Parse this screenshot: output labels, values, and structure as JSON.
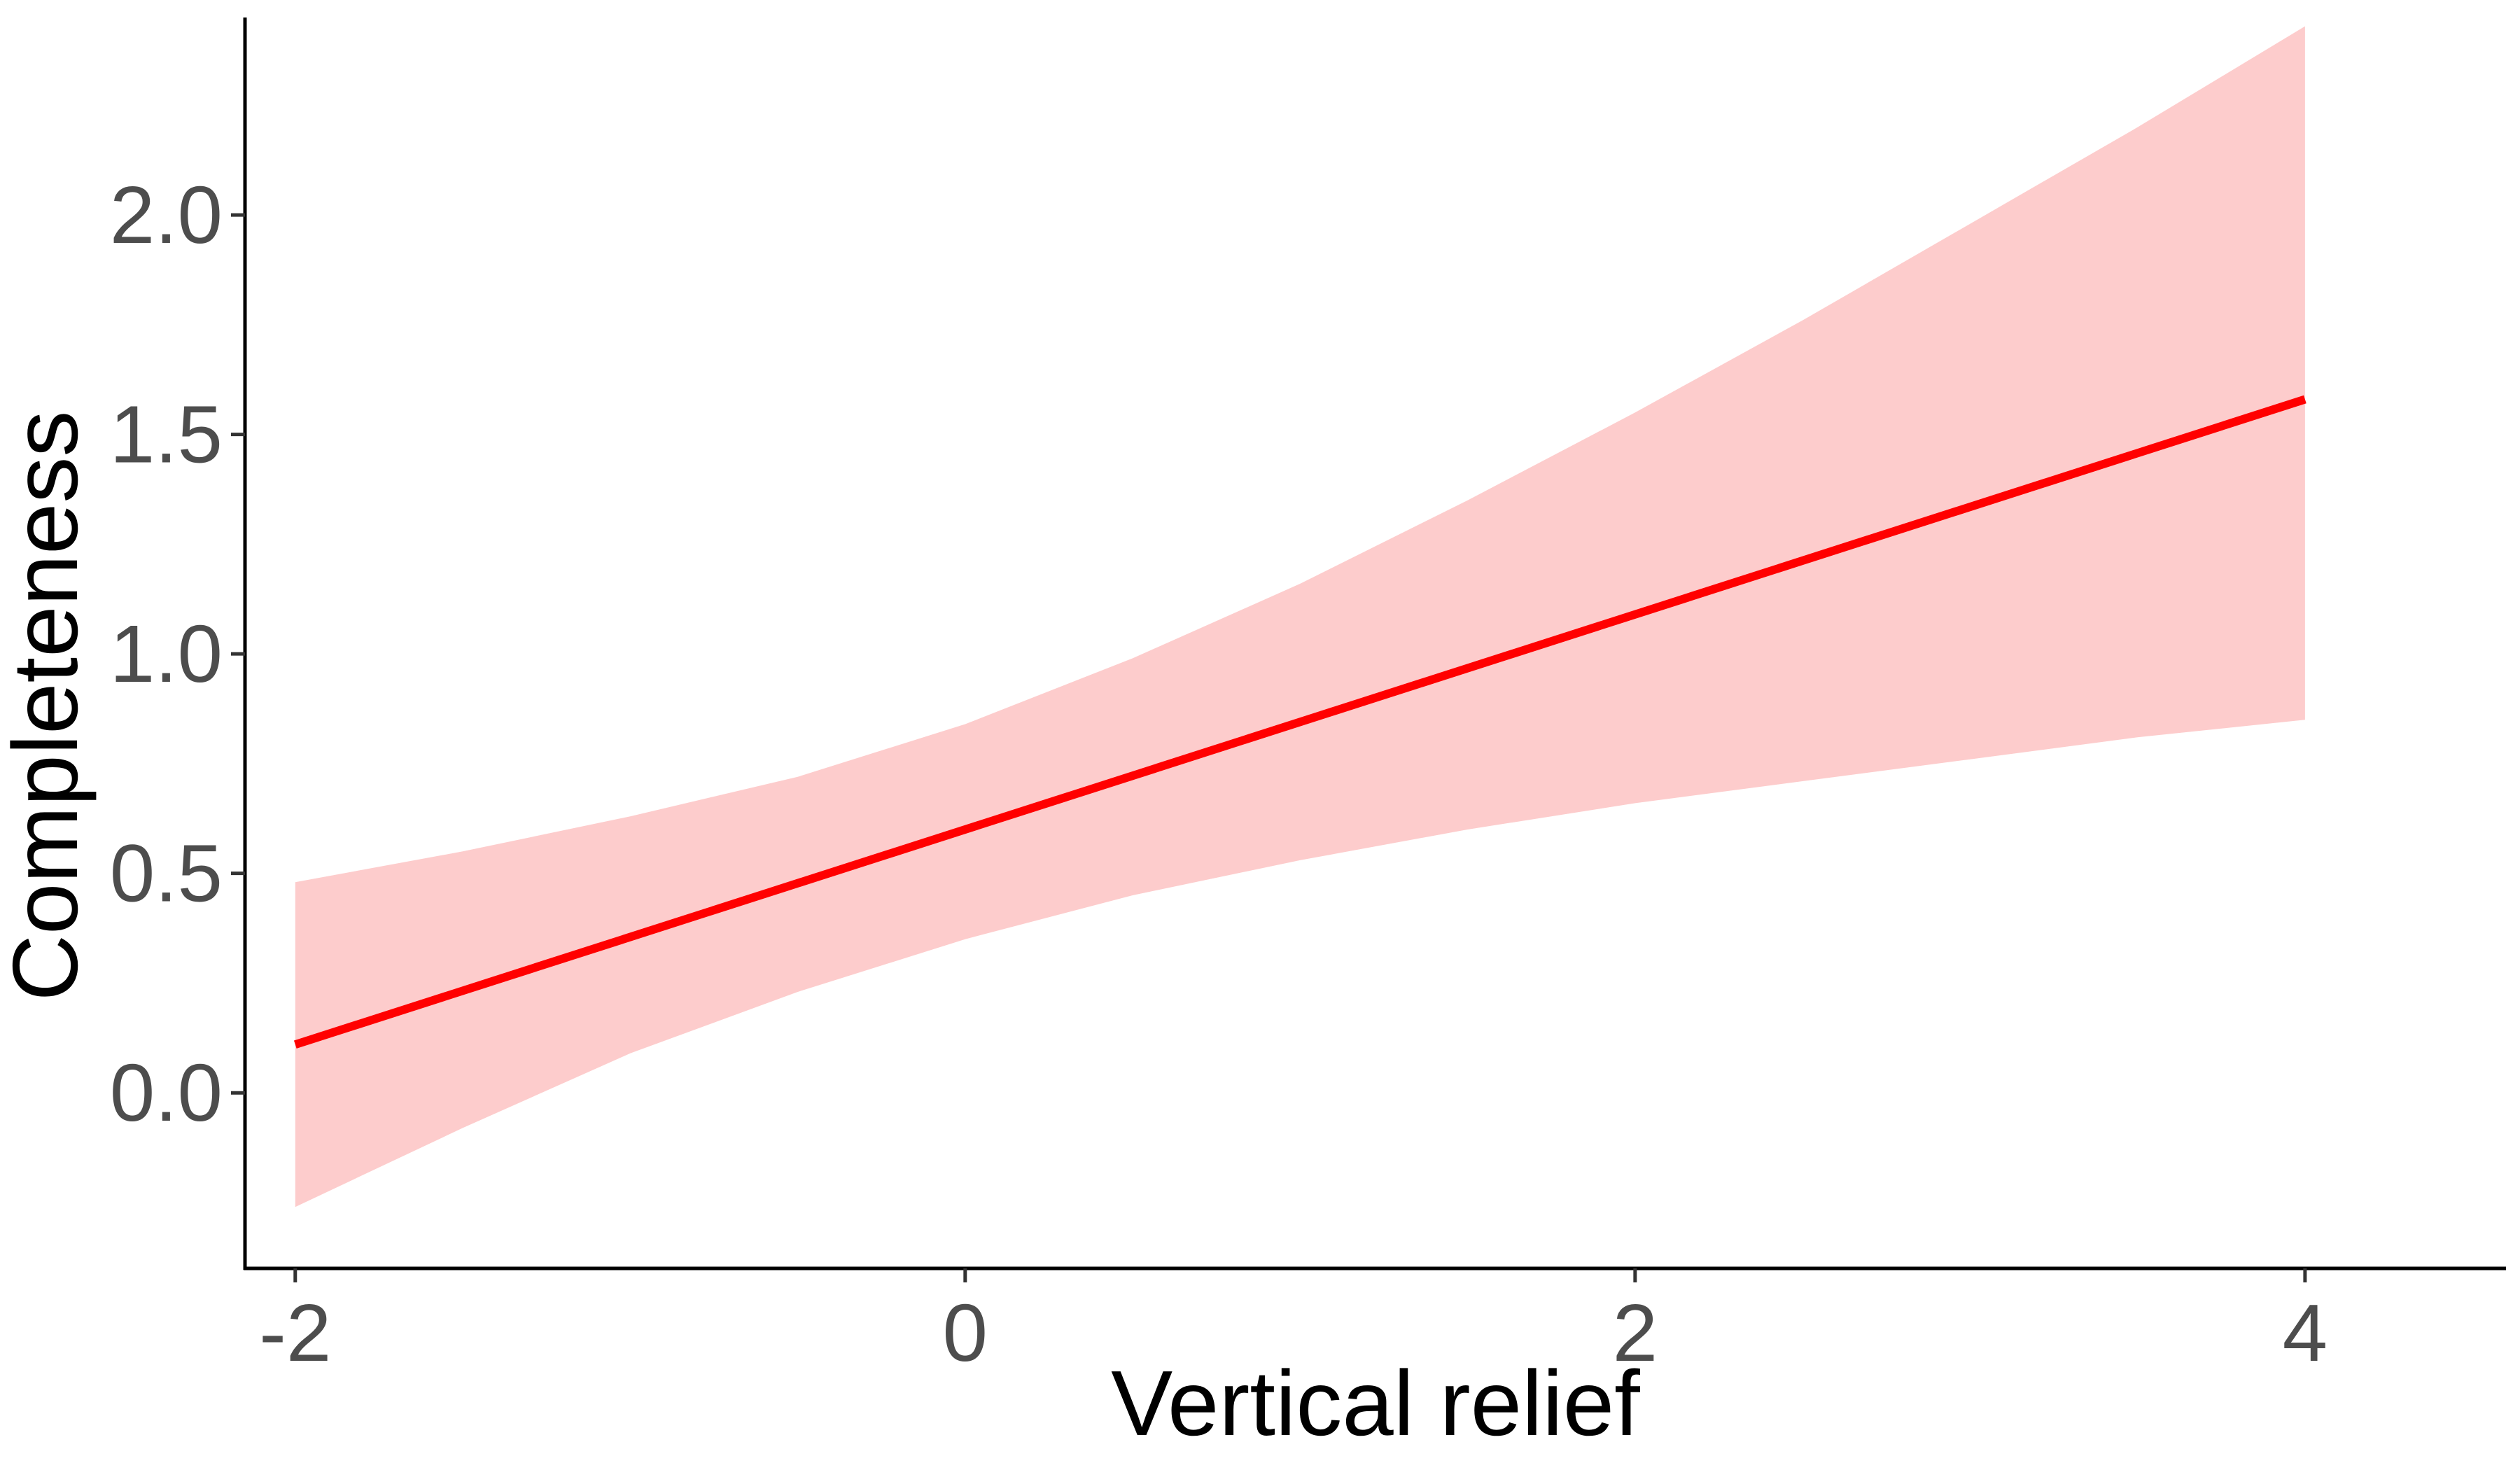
{
  "chart_data": {
    "type": "line",
    "title": "",
    "xlabel": "Vertical relief",
    "ylabel": "Completeness",
    "xlim": [
      -2.15,
      4.6
    ],
    "ylim": [
      -0.4,
      2.45
    ],
    "x_ticks": [
      {
        "value": -2,
        "label": "-2"
      },
      {
        "value": 0,
        "label": "0"
      },
      {
        "value": 2,
        "label": "2"
      },
      {
        "value": 4,
        "label": "4"
      }
    ],
    "y_ticks": [
      {
        "value": 0.0,
        "label": "0.0"
      },
      {
        "value": 0.5,
        "label": "0.5"
      },
      {
        "value": 1.0,
        "label": "1.0"
      },
      {
        "value": 1.5,
        "label": "1.5"
      },
      {
        "value": 2.0,
        "label": "2.0"
      }
    ],
    "grid": false,
    "legend": "none",
    "series": [
      {
        "x": [
          -2,
          4
        ],
        "y": [
          0.11,
          1.58
        ],
        "color": "#ff0000"
      }
    ],
    "ribbon": {
      "color": "#fdcccc",
      "x": [
        -2,
        -1.5,
        -1,
        -0.5,
        0,
        0.5,
        1,
        1.5,
        2,
        2.5,
        3,
        3.5,
        4
      ],
      "upper": [
        0.48,
        0.55,
        0.63,
        0.72,
        0.84,
        0.99,
        1.16,
        1.35,
        1.55,
        1.76,
        1.98,
        2.2,
        2.43
      ],
      "lower": [
        -0.26,
        -0.08,
        0.09,
        0.23,
        0.35,
        0.45,
        0.53,
        0.6,
        0.66,
        0.71,
        0.76,
        0.81,
        0.85
      ]
    }
  }
}
